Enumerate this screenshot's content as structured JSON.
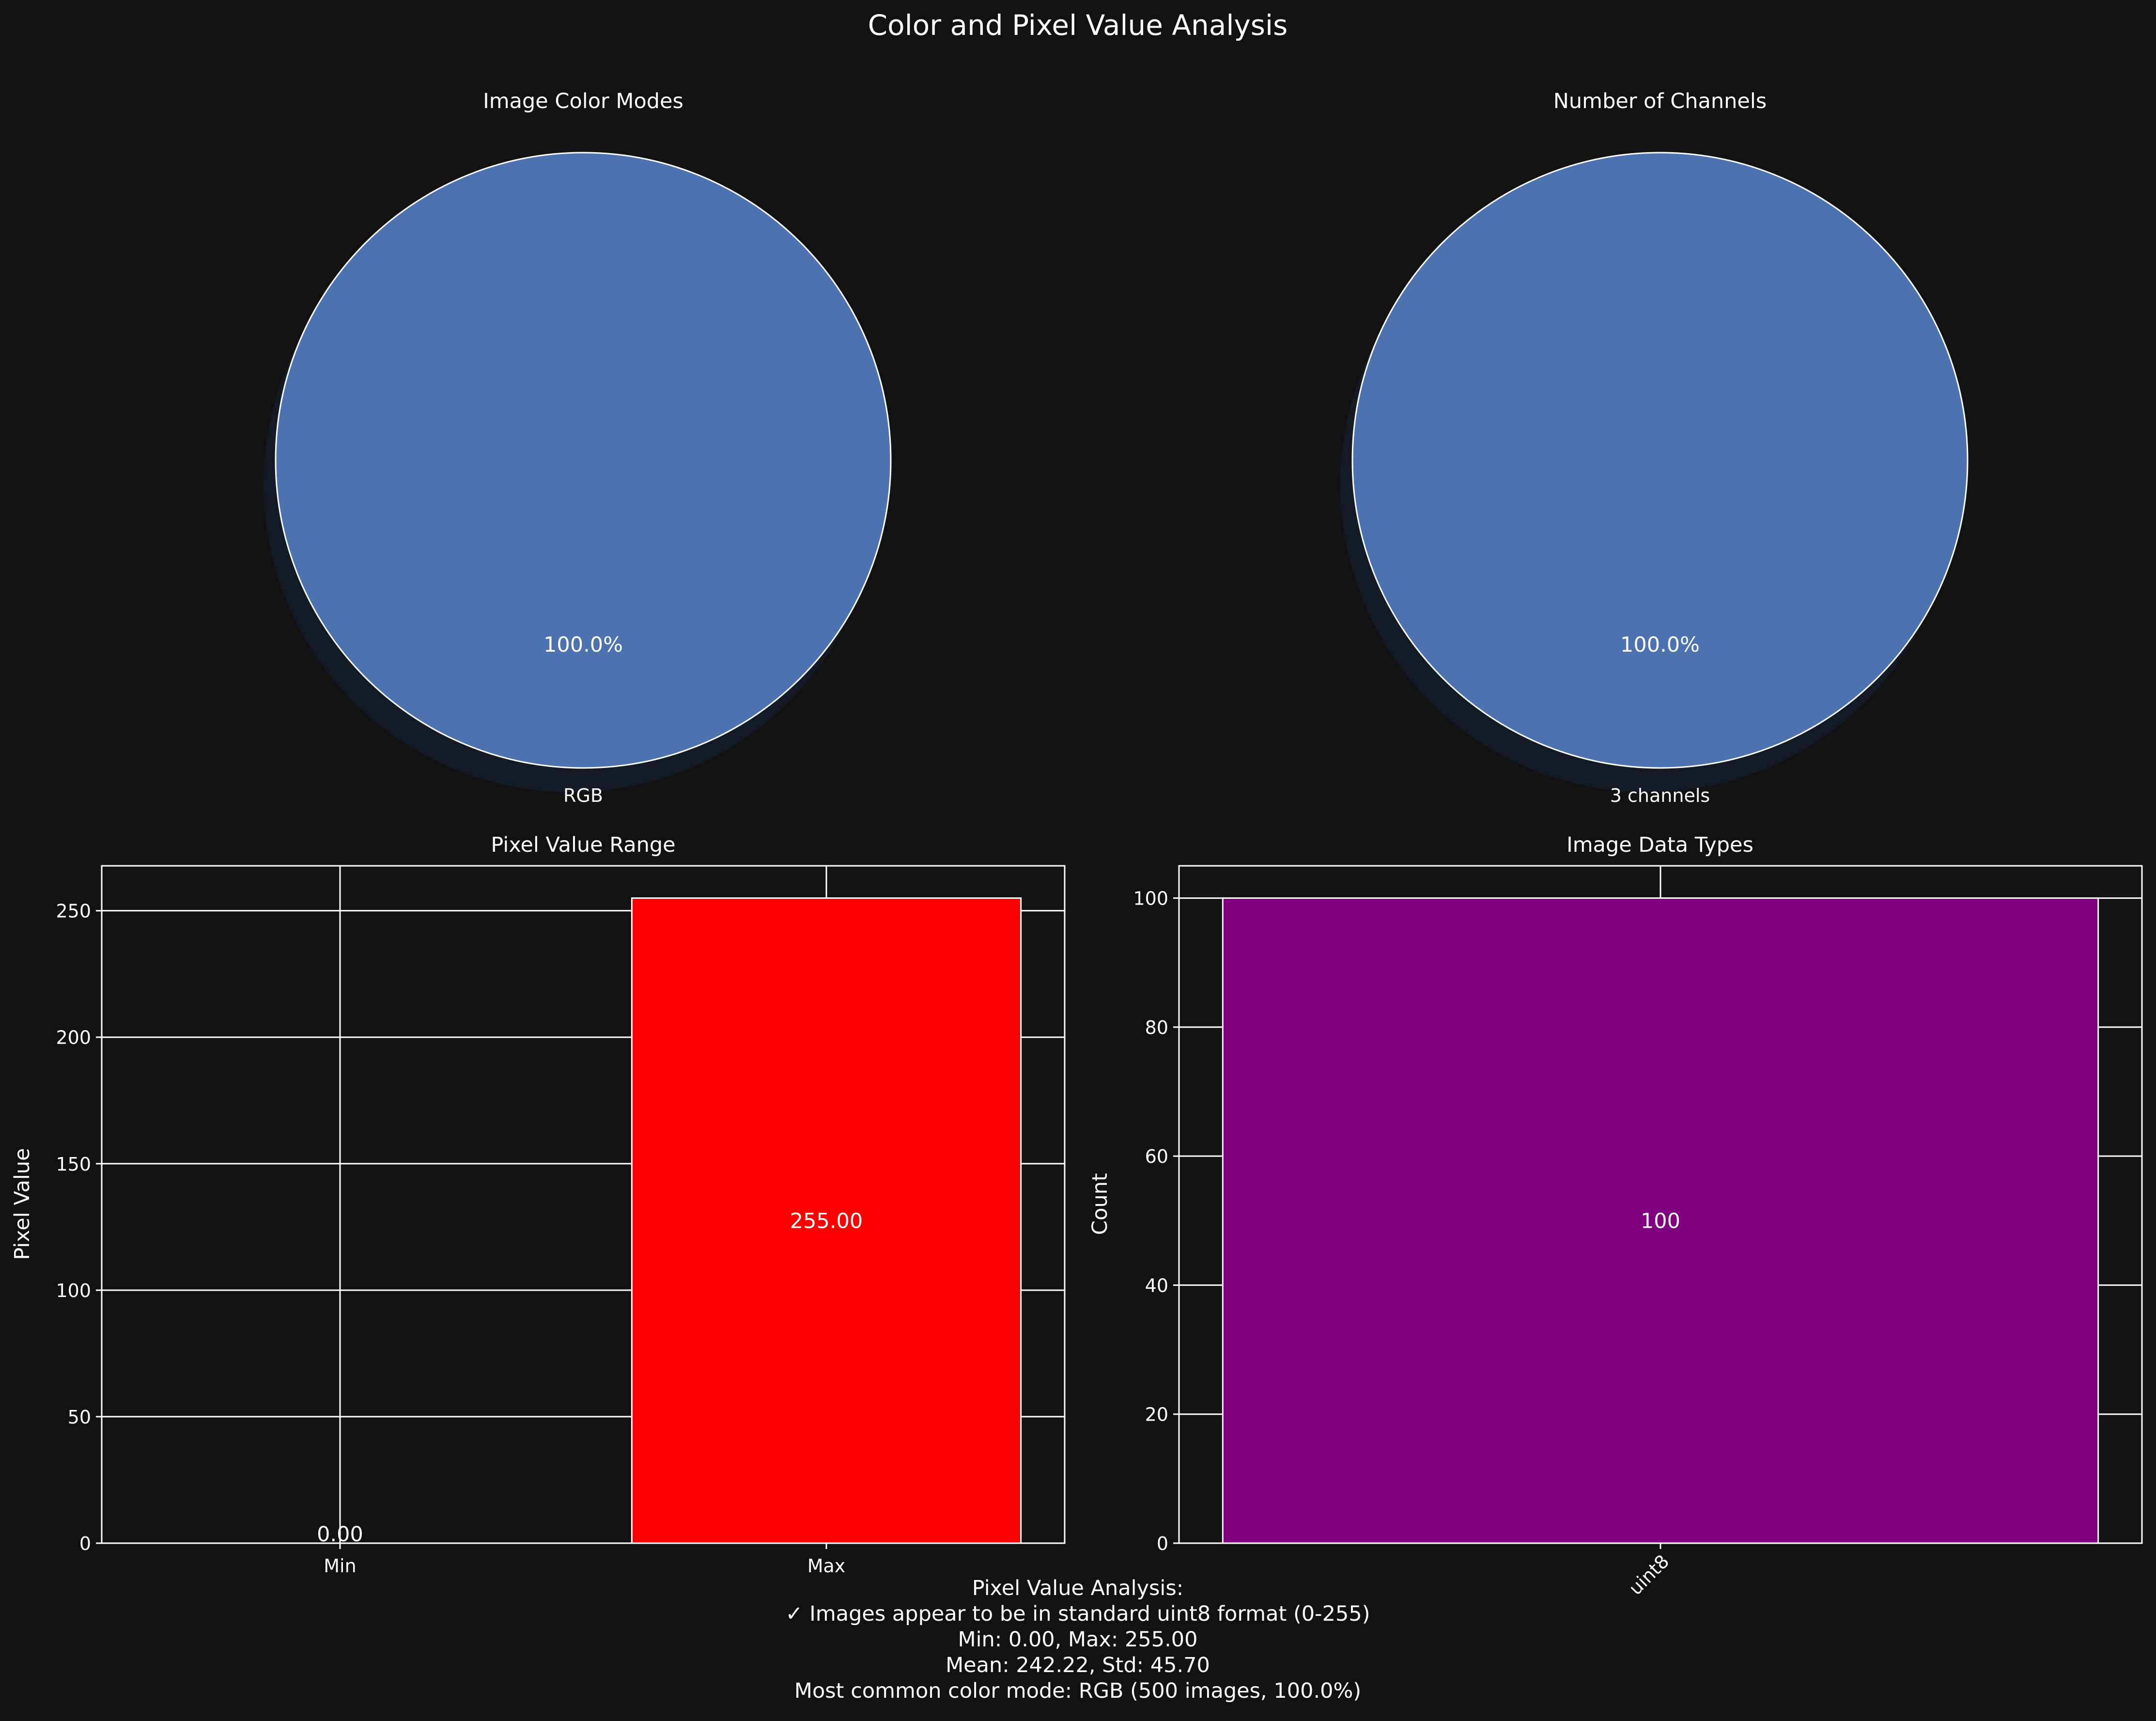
{
  "suptitle": "Color and Pixel Value Analysis",
  "colors": {
    "background": "#121212",
    "foreground": "#ffffff",
    "pie_blue": "#4c72b0",
    "pie_shadow": "#141a25",
    "bar_red": "#ff0000",
    "bar_purple": "#800080"
  },
  "chart_data": [
    {
      "type": "pie",
      "title": "Image Color Modes",
      "labels": [
        "RGB"
      ],
      "values": [
        100
      ],
      "autopct": [
        "100.0%"
      ],
      "shadow": true
    },
    {
      "type": "pie",
      "title": "Number of Channels",
      "labels": [
        "3 channels"
      ],
      "values": [
        100
      ],
      "autopct": [
        "100.0%"
      ],
      "shadow": true
    },
    {
      "type": "bar",
      "title": "Pixel Value Range",
      "xlabel": "",
      "ylabel": "Pixel Value",
      "categories": [
        "Min",
        "Max"
      ],
      "values": [
        0,
        255
      ],
      "value_labels": [
        "0.00",
        "255.00"
      ],
      "colors": [
        "#0000ff",
        "#ff0000"
      ],
      "ylim": [
        0,
        267.75
      ],
      "yticks": [
        0,
        50,
        100,
        150,
        200,
        250
      ],
      "grid": true
    },
    {
      "type": "bar",
      "title": "Image Data Types",
      "xlabel": "",
      "ylabel": "Count",
      "categories": [
        "uint8"
      ],
      "values": [
        100
      ],
      "value_labels": [
        "100"
      ],
      "colors": [
        "#800080"
      ],
      "ylim": [
        0,
        105
      ],
      "yticks": [
        0,
        20,
        40,
        60,
        80,
        100
      ],
      "xtick_rotation": 45,
      "grid": true
    }
  ],
  "summary": {
    "lines": [
      "Pixel Value Analysis:",
      "✓ Images appear to be in standard uint8 format (0-255)",
      "Min: 0.00, Max: 255.00",
      "Mean: 242.22, Std: 45.70",
      "Most common color mode: RGB (500 images, 100.0%)"
    ]
  }
}
